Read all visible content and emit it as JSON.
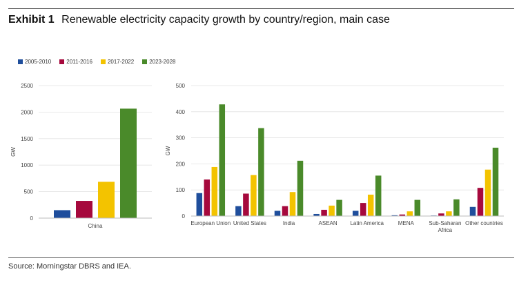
{
  "header": {
    "exhibit_label": "Exhibit 1",
    "title": "Renewable electricity capacity growth by country/region, main case"
  },
  "source": "Source: Morningstar DBRS and IEA.",
  "chart_data": [
    {
      "type": "bar",
      "title": "Renewable electricity capacity growth by country/region, main case",
      "categories": [
        "China"
      ],
      "series": [
        {
          "name": "2005-2010",
          "color": "#1f4e9c",
          "values": [
            150
          ]
        },
        {
          "name": "2011-2016",
          "color": "#a6093d",
          "values": [
            325
          ]
        },
        {
          "name": "2017-2022",
          "color": "#f3c300",
          "values": [
            685
          ]
        },
        {
          "name": "2023-2028",
          "color": "#4a8a2a",
          "values": [
            2065
          ]
        }
      ],
      "xlabel": "",
      "ylabel": "GW",
      "ylim": [
        0,
        2500
      ],
      "yticks": [
        0,
        500,
        1000,
        1500,
        2000,
        2500
      ],
      "grid": true,
      "legend": "top-left"
    },
    {
      "type": "bar",
      "categories": [
        "European Union",
        "United States",
        "India",
        "ASEAN",
        "Latin America",
        "MENA",
        "Sub-Saharan Africa",
        "Other countries"
      ],
      "series": [
        {
          "name": "2005-2010",
          "color": "#1f4e9c",
          "values": [
            88,
            38,
            20,
            8,
            20,
            3,
            2,
            35
          ]
        },
        {
          "name": "2011-2016",
          "color": "#a6093d",
          "values": [
            140,
            86,
            38,
            24,
            50,
            6,
            10,
            108
          ]
        },
        {
          "name": "2017-2022",
          "color": "#f3c300",
          "values": [
            188,
            157,
            92,
            40,
            82,
            18,
            18,
            178
          ]
        },
        {
          "name": "2023-2028",
          "color": "#4a8a2a",
          "values": [
            428,
            337,
            212,
            62,
            155,
            62,
            64,
            262
          ]
        }
      ],
      "xlabel": "",
      "ylabel": "GW",
      "ylim": [
        0,
        500
      ],
      "yticks": [
        0,
        100,
        200,
        300,
        400,
        500
      ],
      "grid": true
    }
  ]
}
